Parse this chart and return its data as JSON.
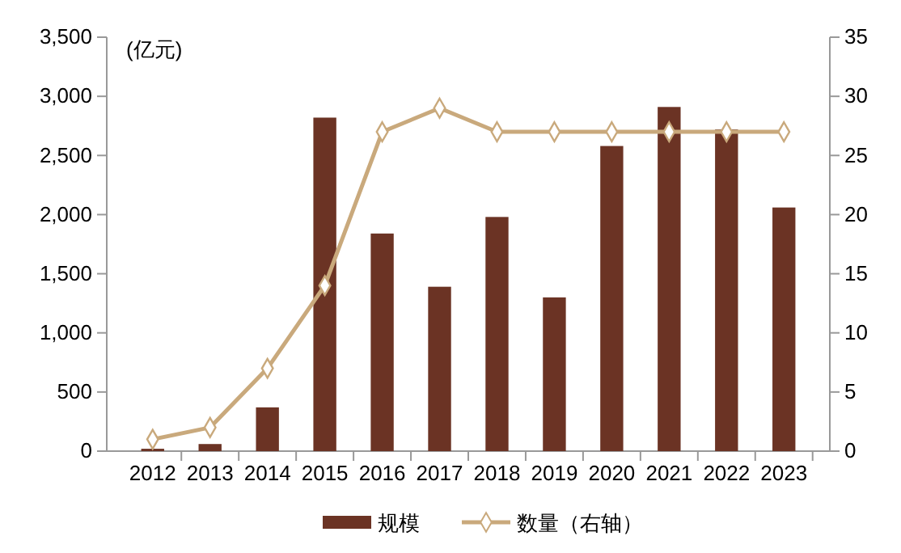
{
  "chart_data": {
    "type": "bar",
    "ylabel": "(亿元)",
    "categories": [
      "2012",
      "2013",
      "2014",
      "2015",
      "2016",
      "2017",
      "2018",
      "2019",
      "2020",
      "2021",
      "2022",
      "2023"
    ],
    "series": [
      {
        "name": "规模",
        "color": "#6b3324",
        "values": [
          20,
          60,
          370,
          2820,
          1840,
          1390,
          1980,
          1300,
          2580,
          2910,
          2720,
          2060
        ]
      },
      {
        "name": "数量（右轴）",
        "type": "line",
        "axis": "y2",
        "color": "#c9a97c",
        "values": [
          1,
          2,
          7,
          14,
          27,
          29,
          27,
          27,
          27,
          27,
          27,
          27
        ]
      }
    ],
    "ylim": [
      0,
      3500
    ],
    "yticks": [
      {
        "value": 0,
        "label": "0"
      },
      {
        "value": 500,
        "label": "500"
      },
      {
        "value": 1000,
        "label": "1,000"
      },
      {
        "value": 1500,
        "label": "1,500"
      },
      {
        "value": 2000,
        "label": "2,000"
      },
      {
        "value": 2500,
        "label": "2,500"
      },
      {
        "value": 3000,
        "label": "3,000"
      },
      {
        "value": 3500,
        "label": "3,500"
      }
    ],
    "y2lim": [
      0,
      35
    ],
    "y2ticks": [
      0,
      5,
      10,
      15,
      20,
      25,
      30,
      35
    ],
    "marker": "diamond",
    "legend": "bottom",
    "grid": false
  }
}
